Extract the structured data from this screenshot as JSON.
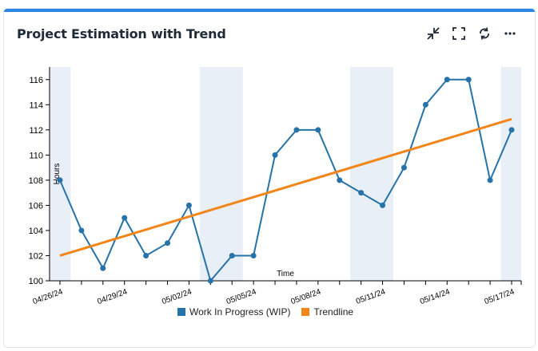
{
  "card": {
    "title": "Project Estimation with Trend",
    "accent": "#2b86e5"
  },
  "toolbar": {
    "icons": [
      "collapse-icon",
      "fullscreen-icon",
      "refresh-icon",
      "more-icon"
    ]
  },
  "chart_data": {
    "type": "line",
    "title": "Project Estimation with Trend",
    "xlabel": "Time",
    "ylabel": "Hours",
    "ylim": [
      100,
      117
    ],
    "yticks": [
      100,
      102,
      104,
      106,
      108,
      110,
      112,
      114,
      116
    ],
    "x": [
      "04/26/24",
      "04/27/24",
      "04/28/24",
      "04/29/24",
      "04/30/24",
      "05/01/24",
      "05/02/24",
      "05/03/24",
      "05/04/24",
      "05/05/24",
      "05/06/24",
      "05/07/24",
      "05/08/24",
      "05/09/24",
      "05/10/24",
      "05/11/24",
      "05/12/24",
      "05/13/24",
      "05/14/24",
      "05/15/24",
      "05/16/24",
      "05/17/24"
    ],
    "xtick_labels": [
      "04/26/24",
      "04/29/24",
      "05/02/24",
      "05/05/24",
      "05/08/24",
      "05/11/24",
      "05/14/24",
      "05/17/24"
    ],
    "weekend_bands": [
      [
        "04/26/24",
        "04/26/24"
      ],
      [
        "05/03/24",
        "05/04/24"
      ],
      [
        "05/10/24",
        "05/11/24"
      ],
      [
        "05/17/24",
        "05/17/24"
      ]
    ],
    "series": [
      {
        "name": "Work In Progress (WIP)",
        "color": "#2573a8",
        "values": [
          108,
          104,
          101,
          105,
          102,
          103,
          106,
          100,
          102,
          102,
          110,
          112,
          112,
          108,
          107,
          106,
          109,
          114,
          116,
          116,
          108,
          112
        ]
      },
      {
        "name": "Trendline",
        "color": "#f28518",
        "values": [
          102.0,
          102.52,
          103.03,
          103.55,
          104.07,
          104.59,
          105.1,
          105.62,
          106.14,
          106.66,
          107.17,
          107.69,
          108.21,
          108.73,
          109.24,
          109.76,
          110.28,
          110.79,
          111.31,
          111.83,
          112.35,
          112.86
        ]
      }
    ],
    "legend": [
      "Work In Progress (WIP)",
      "Trendline"
    ]
  }
}
